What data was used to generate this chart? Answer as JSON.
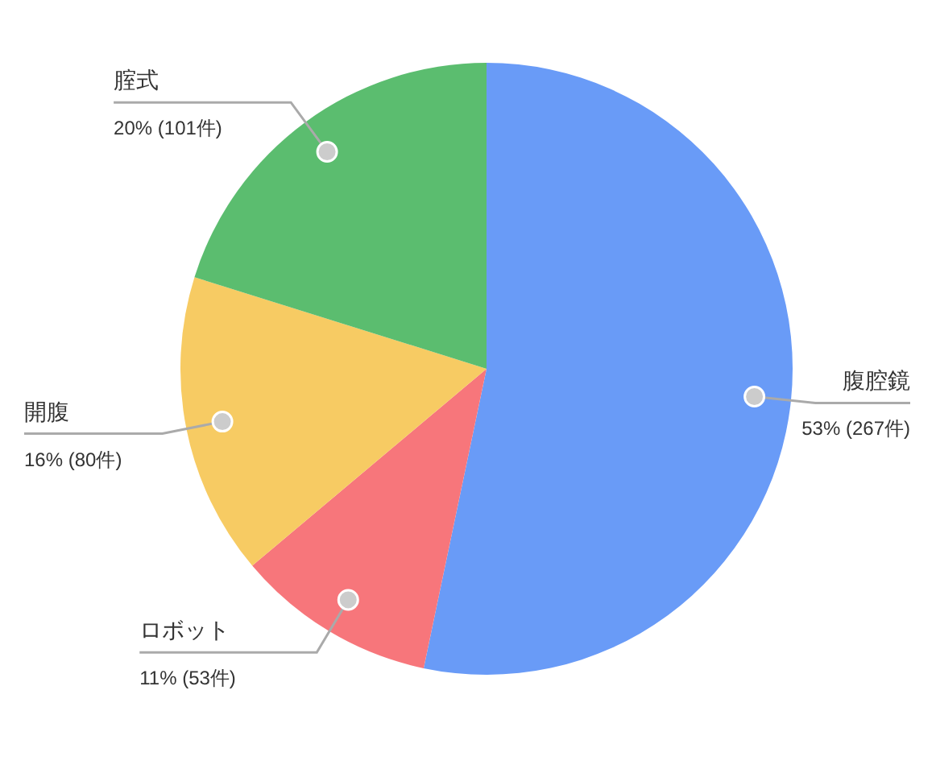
{
  "chart_data": {
    "type": "pie",
    "categories": [
      "腹腔鏡",
      "ロボット",
      "開腹",
      "腟式"
    ],
    "values": [
      267,
      53,
      80,
      101
    ],
    "colors": [
      "#699bf7",
      "#f7767b",
      "#f7cb63",
      "#5bbd6f"
    ],
    "value_labels": [
      "53% (267件)",
      "11% (53件)",
      "16% (80件)",
      "20% (101件)"
    ]
  }
}
